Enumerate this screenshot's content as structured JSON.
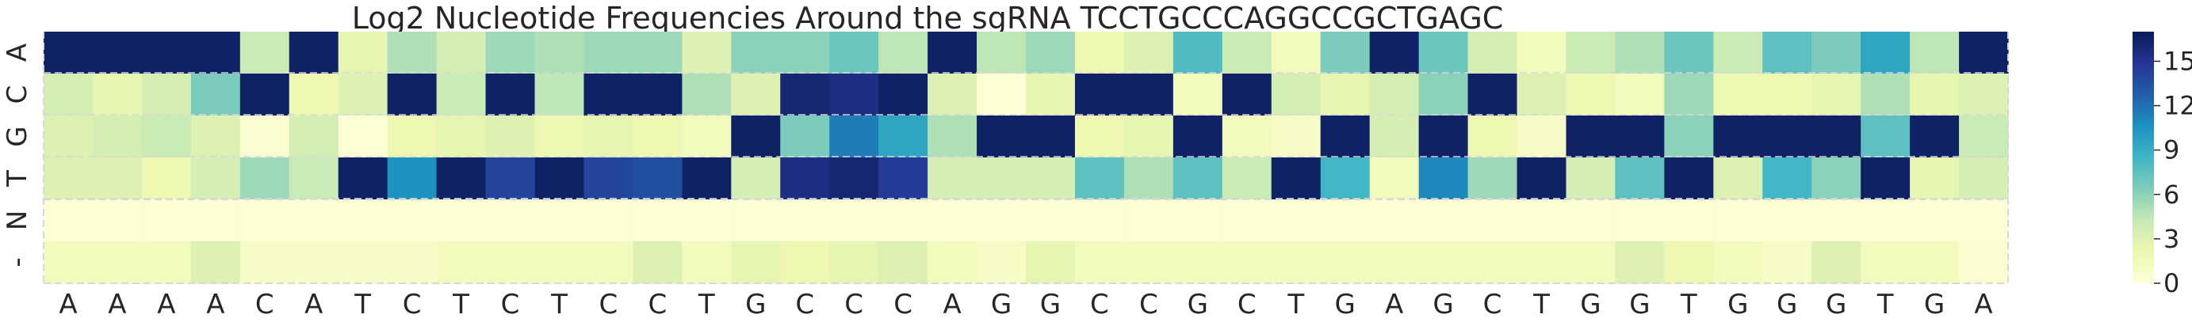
{
  "chart_data": {
    "type": "heatmap",
    "title": "Log2 Nucleotide Frequencies Around the sgRNA TCCTGCCCAGGCCGCTGAGC",
    "x_tick_labels": [
      "A",
      "A",
      "A",
      "A",
      "C",
      "A",
      "T",
      "C",
      "T",
      "C",
      "T",
      "C",
      "C",
      "T",
      "G",
      "C",
      "C",
      "C",
      "A",
      "G",
      "G",
      "C",
      "C",
      "G",
      "C",
      "T",
      "G",
      "A",
      "G",
      "C",
      "T",
      "G",
      "G",
      "T",
      "G",
      "G",
      "G",
      "T",
      "G",
      "A"
    ],
    "y_tick_labels": [
      "A",
      "C",
      "G",
      "T",
      "N",
      "-"
    ],
    "colorbar": {
      "min": 0,
      "max": 17,
      "ticks": [
        0,
        3,
        6,
        9,
        12,
        15
      ],
      "colormap": "YlGnBu",
      "stops": [
        "#ffffd9",
        "#edf8b1",
        "#c7e9b4",
        "#7fcdbb",
        "#41b6c4",
        "#1d91c0",
        "#225ea8",
        "#253494",
        "#081d58"
      ]
    },
    "grid_line_color": "#d8d8d8",
    "values": [
      [
        16.5,
        16.5,
        16.5,
        16.5,
        4.0,
        16.5,
        2.5,
        5.0,
        3.5,
        5.5,
        5.0,
        5.5,
        5.5,
        3.0,
        6.0,
        6.0,
        7.0,
        4.5,
        16.5,
        4.5,
        5.5,
        2.0,
        3.0,
        8.0,
        4.0,
        1.5,
        6.5,
        16.5,
        7.0,
        3.5,
        1.5,
        4.0,
        5.0,
        7.0,
        4.0,
        7.5,
        6.5,
        9.5,
        4.5,
        16.5
      ],
      [
        3.5,
        2.5,
        3.5,
        6.5,
        16.5,
        2.0,
        3.0,
        16.5,
        4.0,
        16.5,
        4.5,
        16.5,
        16.5,
        5.0,
        3.0,
        16.0,
        15.5,
        16.5,
        3.0,
        0.3,
        2.5,
        16.5,
        16.5,
        1.5,
        16.5,
        3.5,
        2.5,
        3.5,
        6.0,
        16.5,
        3.0,
        2.0,
        1.5,
        5.5,
        2.0,
        2.0,
        2.5,
        5.0,
        2.5,
        3.0
      ],
      [
        3.0,
        3.5,
        4.0,
        3.0,
        0.5,
        3.5,
        0.3,
        2.0,
        2.5,
        3.0,
        2.0,
        2.5,
        2.0,
        1.5,
        16.5,
        6.5,
        11.5,
        9.5,
        5.0,
        16.5,
        16.5,
        2.0,
        2.5,
        16.5,
        1.5,
        1.0,
        16.5,
        3.5,
        16.5,
        2.0,
        1.0,
        16.5,
        16.5,
        6.0,
        16.5,
        16.5,
        16.5,
        7.5,
        16.5,
        4.0
      ],
      [
        3.0,
        3.0,
        2.0,
        3.5,
        5.5,
        4.0,
        16.5,
        10.5,
        16.5,
        14.0,
        16.5,
        14.0,
        13.5,
        16.5,
        3.5,
        15.5,
        16.0,
        14.5,
        3.5,
        3.5,
        3.5,
        7.5,
        5.0,
        7.5,
        4.0,
        16.5,
        8.5,
        1.5,
        11.0,
        5.5,
        16.5,
        3.5,
        7.5,
        16.5,
        3.0,
        8.5,
        6.0,
        16.5,
        2.5,
        3.5
      ],
      [
        0.3,
        0.3,
        0.3,
        0.3,
        0.3,
        0.3,
        0.3,
        0.3,
        0.3,
        0.3,
        0.3,
        0.3,
        0.3,
        0.3,
        0.3,
        0.3,
        0.3,
        0.3,
        0.3,
        0.3,
        0.3,
        0.3,
        0.3,
        0.3,
        0.3,
        0.3,
        0.3,
        0.3,
        0.3,
        0.3,
        0.3,
        0.3,
        0.3,
        0.3,
        0.3,
        0.3,
        0.3,
        0.3,
        0.3,
        0.3
      ],
      [
        1.5,
        1.5,
        1.5,
        3.0,
        1.0,
        1.0,
        1.0,
        1.0,
        1.5,
        1.5,
        1.5,
        1.5,
        3.0,
        1.5,
        2.5,
        2.0,
        2.5,
        3.0,
        1.5,
        1.0,
        2.5,
        1.5,
        1.5,
        1.5,
        1.5,
        1.5,
        1.5,
        1.5,
        1.5,
        1.5,
        1.5,
        1.5,
        3.0,
        2.0,
        1.5,
        1.0,
        3.0,
        1.5,
        1.5,
        0.5
      ]
    ],
    "bordered_rows": [
      0,
      1,
      2,
      3
    ]
  }
}
